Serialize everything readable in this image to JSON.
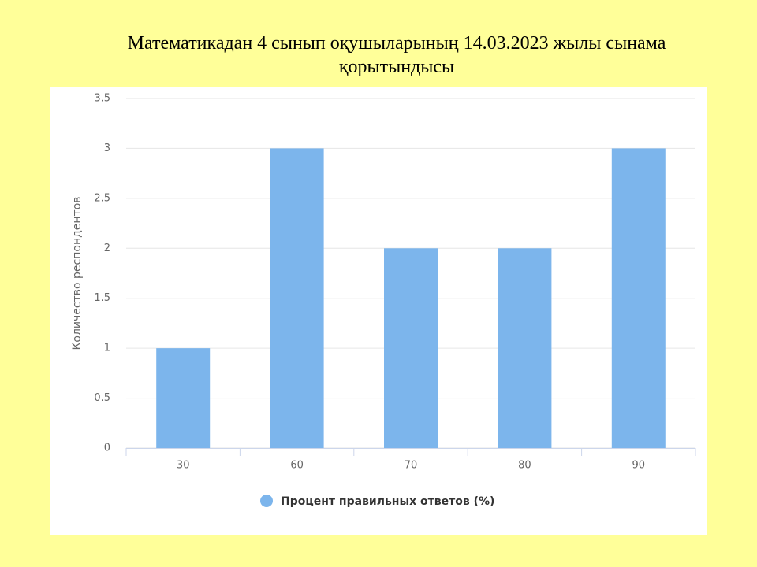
{
  "chart_data": {
    "type": "bar",
    "title": "Математикадан 4 сынып оқушыларының 14.03.2023 жылы сынама қорытындысы",
    "y_label": "Количество респондентов",
    "categories": [
      "30",
      "60",
      "70",
      "80",
      "90"
    ],
    "series": [
      {
        "name": "Процент правильных ответов (%)",
        "color": "#7cb5ec",
        "values": [
          1,
          3,
          2,
          2,
          3
        ]
      }
    ],
    "ylim": [
      0,
      3.5
    ],
    "yticks": [
      0,
      0.5,
      1,
      1.5,
      2,
      2.5,
      3,
      3.5
    ],
    "grid": true
  }
}
